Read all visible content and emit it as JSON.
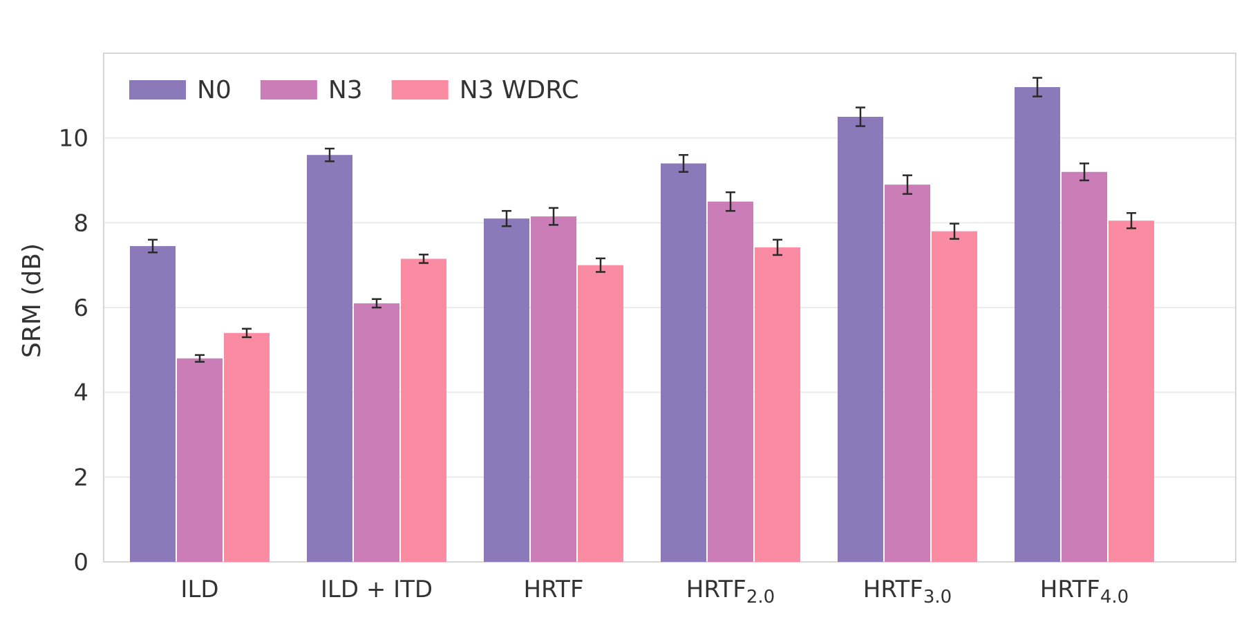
{
  "chart_data": {
    "type": "bar",
    "title": "",
    "xlabel": "",
    "ylabel": "SRM (dB)",
    "ylim": [
      0,
      12
    ],
    "yticks": [
      0,
      2,
      4,
      6,
      8,
      10
    ],
    "grid": true,
    "legend_position": "top-left",
    "categories": [
      {
        "label": "ILD",
        "sub": ""
      },
      {
        "label": "ILD + ITD",
        "sub": ""
      },
      {
        "label": "HRTF",
        "sub": ""
      },
      {
        "label": "HRTF",
        "sub": "2.0"
      },
      {
        "label": "HRTF",
        "sub": "3.0"
      },
      {
        "label": "HRTF",
        "sub": "4.0"
      }
    ],
    "series": [
      {
        "name": "N0",
        "color": "#8B79BA",
        "values": [
          7.45,
          9.6,
          8.1,
          9.4,
          10.5,
          11.2
        ],
        "errors": [
          0.15,
          0.15,
          0.18,
          0.2,
          0.22,
          0.22
        ]
      },
      {
        "name": "N3",
        "color": "#CB7DB8",
        "values": [
          4.8,
          6.1,
          8.15,
          8.5,
          8.9,
          9.2
        ],
        "errors": [
          0.08,
          0.1,
          0.2,
          0.22,
          0.22,
          0.2
        ]
      },
      {
        "name": "N3 WDRC",
        "color": "#F98BA2",
        "values": [
          5.4,
          7.15,
          7.0,
          7.42,
          7.8,
          8.05
        ],
        "errors": [
          0.1,
          0.1,
          0.16,
          0.18,
          0.18,
          0.18
        ]
      }
    ]
  }
}
